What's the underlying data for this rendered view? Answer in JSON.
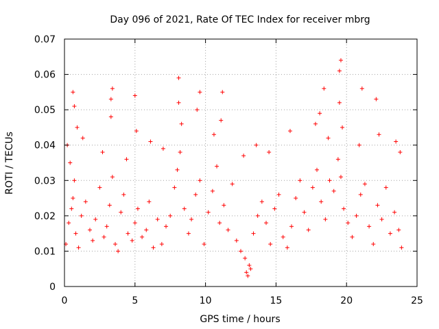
{
  "chart_data": {
    "type": "scatter",
    "title": "Day 096 of 2021, Rate Of TEC Index for receiver mbrg",
    "xlabel": "GPS time / hours",
    "ylabel": "ROTI / TECUs",
    "xlim": [
      0,
      25
    ],
    "ylim": [
      0,
      0.07
    ],
    "x_ticks": [
      "0",
      "5",
      "10",
      "15",
      "20",
      "25"
    ],
    "y_ticks": [
      "0",
      "0.01",
      "0.02",
      "0.03",
      "0.04",
      "0.05",
      "0.06",
      "0.07"
    ],
    "grid": true,
    "marker": "+",
    "color": "#ff0000",
    "series": [
      {
        "x": [
          0.1,
          0.3,
          0.5,
          0.6,
          0.7,
          0.8,
          1.0,
          1.2,
          1.5,
          1.8,
          2.0,
          2.2,
          2.5,
          2.8,
          3.0,
          3.2,
          3.4,
          3.6,
          3.8,
          4.0,
          4.2,
          4.5,
          4.8,
          5.0,
          5.2,
          5.5,
          5.8,
          6.0,
          6.3,
          6.6,
          6.9,
          7.2,
          7.5,
          7.8,
          8.0,
          8.2,
          8.5,
          8.8,
          9.0,
          9.3,
          9.6,
          9.9,
          10.2,
          10.5,
          10.8,
          11.0,
          11.3,
          11.6,
          11.9,
          12.2,
          12.5,
          12.8,
          13.1,
          13.4,
          13.7,
          14.0,
          14.3,
          14.6,
          14.9,
          15.2,
          15.5,
          15.8,
          16.1,
          16.4,
          16.7,
          17.0,
          17.3,
          17.6,
          17.9,
          18.2,
          18.5,
          18.8,
          19.1,
          19.4,
          19.6,
          19.8,
          20.1,
          20.4,
          20.7,
          21.0,
          21.3,
          21.6,
          21.9,
          22.2,
          22.5,
          22.8,
          23.1,
          23.4,
          23.7,
          23.9,
          0.2,
          0.4,
          0.9,
          1.3,
          2.7,
          3.3,
          4.4,
          5.1,
          6.1,
          7.0,
          8.1,
          8.3,
          9.4,
          10.6,
          11.1,
          12.7,
          13.6,
          14.5,
          16.0,
          17.8,
          18.1,
          18.7,
          19.5,
          19.7,
          20.9,
          22.3,
          23.5,
          23.8,
          12.9,
          13.0,
          13.2,
          0.6,
          3.4,
          8.1,
          9.6,
          11.2,
          18.4,
          19.6,
          21.1,
          22.1,
          0.7,
          5.0,
          3.3,
          19.5
        ],
        "y": [
          0.012,
          0.018,
          0.022,
          0.025,
          0.03,
          0.015,
          0.011,
          0.02,
          0.024,
          0.016,
          0.013,
          0.019,
          0.028,
          0.014,
          0.017,
          0.023,
          0.031,
          0.012,
          0.01,
          0.021,
          0.026,
          0.015,
          0.013,
          0.018,
          0.022,
          0.014,
          0.016,
          0.024,
          0.011,
          0.019,
          0.012,
          0.017,
          0.02,
          0.028,
          0.033,
          0.038,
          0.022,
          0.015,
          0.019,
          0.026,
          0.03,
          0.012,
          0.021,
          0.027,
          0.034,
          0.018,
          0.023,
          0.016,
          0.029,
          0.013,
          0.01,
          0.008,
          0.006,
          0.015,
          0.02,
          0.024,
          0.018,
          0.012,
          0.022,
          0.026,
          0.014,
          0.011,
          0.017,
          0.025,
          0.03,
          0.021,
          0.016,
          0.028,
          0.033,
          0.024,
          0.019,
          0.03,
          0.027,
          0.036,
          0.031,
          0.022,
          0.018,
          0.014,
          0.02,
          0.026,
          0.029,
          0.017,
          0.012,
          0.023,
          0.019,
          0.028,
          0.015,
          0.021,
          0.016,
          0.011,
          0.04,
          0.035,
          0.045,
          0.042,
          0.038,
          0.048,
          0.036,
          0.044,
          0.041,
          0.039,
          0.052,
          0.046,
          0.05,
          0.043,
          0.047,
          0.037,
          0.04,
          0.038,
          0.044,
          0.046,
          0.049,
          0.042,
          0.052,
          0.045,
          0.04,
          0.043,
          0.041,
          0.038,
          0.004,
          0.003,
          0.005,
          0.055,
          0.056,
          0.059,
          0.055,
          0.055,
          0.056,
          0.064,
          0.056,
          0.053,
          0.051,
          0.054,
          0.053,
          0.061
        ]
      }
    ]
  }
}
